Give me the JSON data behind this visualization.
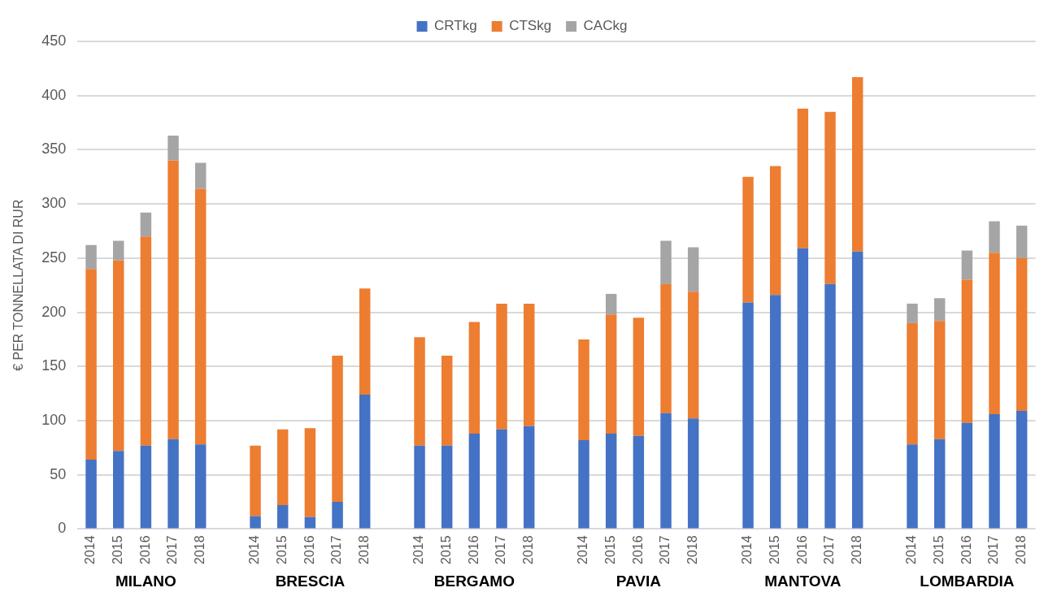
{
  "chart_data": {
    "type": "bar",
    "stacked": true,
    "ylabel": "€ PER TONNELLATA DI RUR",
    "categories": [
      "2014",
      "2015",
      "2016",
      "2017",
      "2018",
      null,
      "2014",
      "2015",
      "2016",
      "2017",
      "2018",
      null,
      "2014",
      "2015",
      "2016",
      "2017",
      "2018",
      null,
      "2014",
      "2015",
      "2016",
      "2017",
      "2018",
      null,
      "2014",
      "2015",
      "2016",
      "2017",
      "2018",
      null,
      "2014",
      "2015",
      "2016",
      "2017",
      "2018"
    ],
    "series": [
      {
        "name": "CRTkg",
        "color": "#4472c4",
        "values": [
          64,
          72,
          77,
          83,
          78,
          null,
          12,
          22,
          11,
          25,
          124,
          null,
          77,
          77,
          88,
          92,
          95,
          null,
          82,
          88,
          86,
          107,
          102,
          null,
          209,
          216,
          259,
          226,
          256,
          null,
          78,
          83,
          98,
          106,
          109
        ]
      },
      {
        "name": "CTSkg",
        "color": "#ed7d31",
        "values": [
          176,
          176,
          193,
          257,
          236,
          null,
          65,
          70,
          82,
          135,
          98,
          null,
          100,
          83,
          103,
          116,
          113,
          null,
          93,
          110,
          109,
          119,
          117,
          null,
          116,
          119,
          129,
          159,
          161,
          null,
          112,
          109,
          132,
          149,
          141
        ]
      },
      {
        "name": "CACkg",
        "color": "#a5a5a5",
        "values": [
          22,
          18,
          22,
          23,
          24,
          null,
          null,
          null,
          null,
          null,
          null,
          null,
          null,
          null,
          null,
          null,
          null,
          null,
          null,
          19,
          null,
          40,
          41,
          null,
          null,
          null,
          null,
          null,
          null,
          null,
          18,
          21,
          27,
          29,
          30
        ]
      }
    ],
    "ylim": [
      0,
      450
    ],
    "yticks": [
      0,
      50,
      100,
      150,
      200,
      250,
      300,
      350,
      400,
      450
    ],
    "grid": "y",
    "legend": "top",
    "annotations": [
      "MILANO",
      "BRESCIA",
      "BERGAMO",
      "PAVIA",
      "MANTOVA",
      "LOMBARDIA"
    ]
  }
}
